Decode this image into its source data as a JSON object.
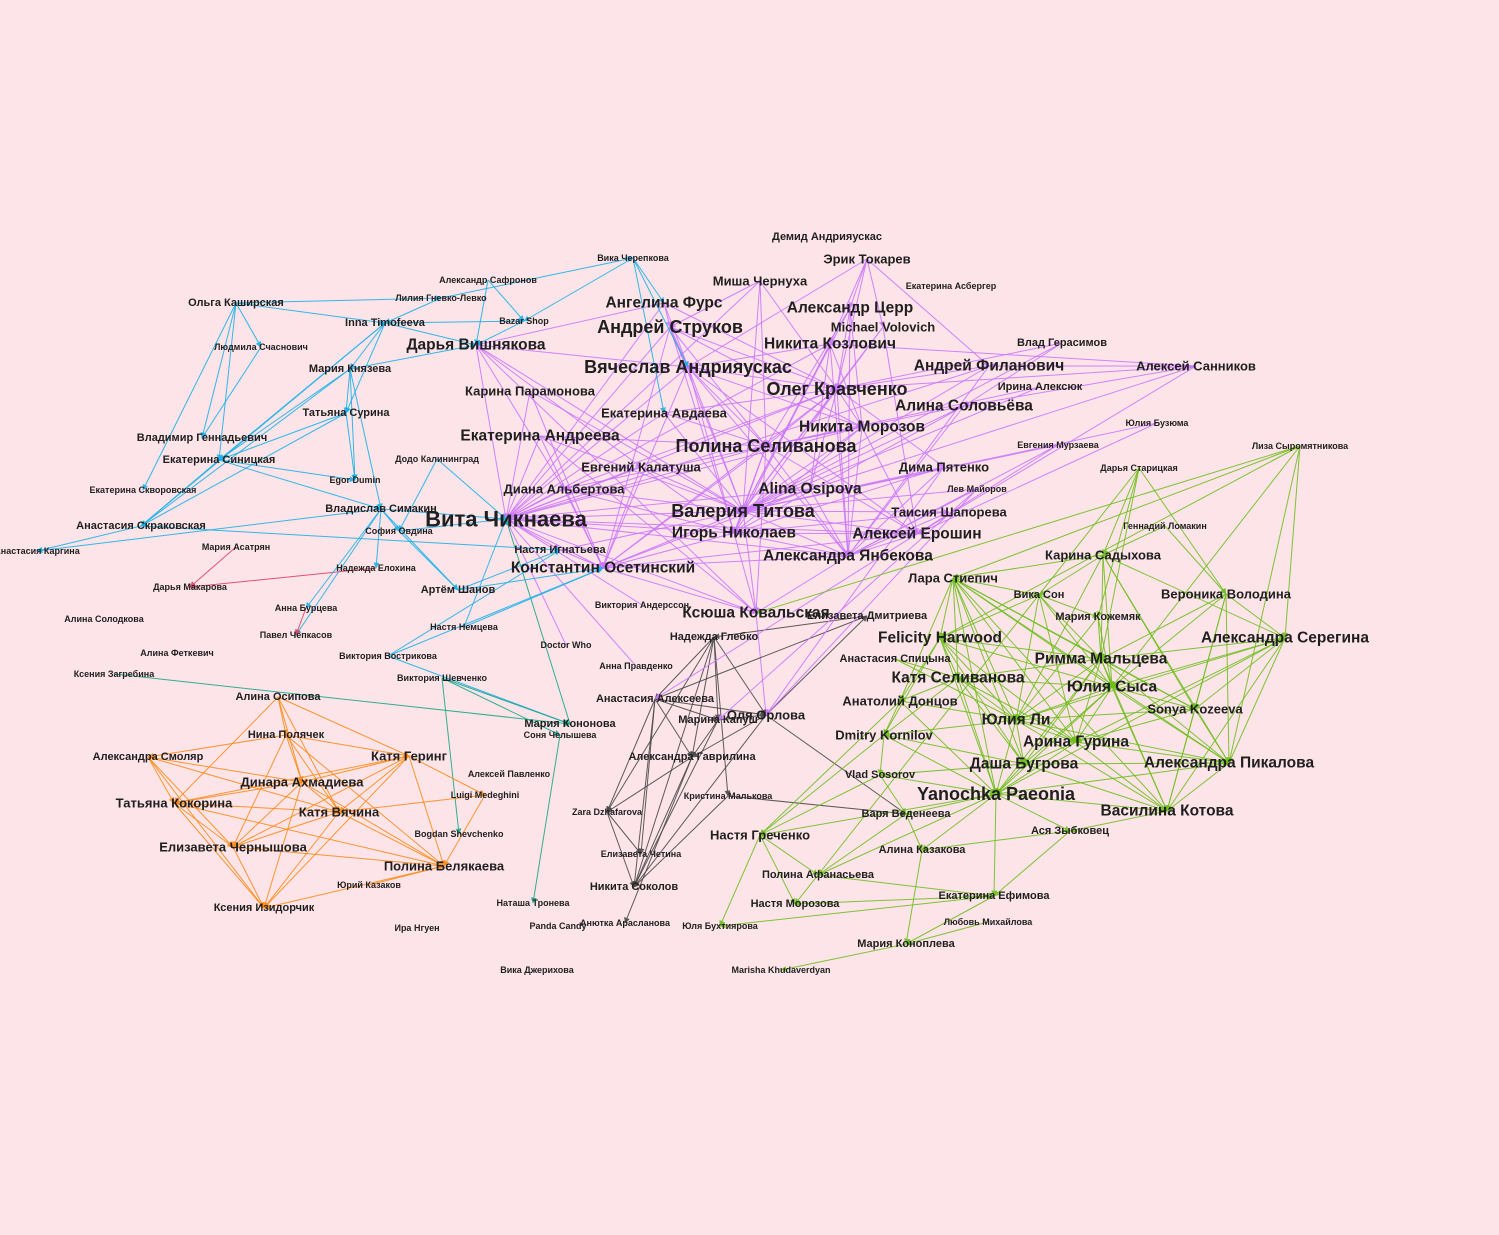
{
  "background": "#fde4e8",
  "clusters": {
    "purple": "#cc77ff",
    "blue": "#1ab2e8",
    "green": "#6fbf1f",
    "orange": "#ff8c1a",
    "gray": "#4a4a4a",
    "red": "#e0406a",
    "teal": "#1aa88a"
  },
  "nodes": [
    {
      "id": "demid",
      "label": "Демид Андрияускас",
      "c": "purple",
      "s": 1
    },
    {
      "id": "erik",
      "label": "Эрик Токарев",
      "c": "purple",
      "s": 2
    },
    {
      "id": "misha",
      "label": "Миша Чернуха",
      "c": "purple",
      "s": 2
    },
    {
      "id": "asberger",
      "label": "Екатерина Асбергер",
      "c": "purple",
      "s": 0
    },
    {
      "id": "angelina",
      "label": "Ангелина Фурс",
      "c": "purple",
      "s": 3
    },
    {
      "id": "cerr",
      "label": "Александр Церр",
      "c": "purple",
      "s": 3
    },
    {
      "id": "strukov",
      "label": "Андрей Струков",
      "c": "purple",
      "s": 4
    },
    {
      "id": "volovich",
      "label": "Michael Volovich",
      "c": "purple",
      "s": 2
    },
    {
      "id": "kozlovich",
      "label": "Никита Козлович",
      "c": "purple",
      "s": 3
    },
    {
      "id": "gerasimov",
      "label": "Влад Герасимов",
      "c": "purple",
      "s": 1
    },
    {
      "id": "vishnyakova",
      "label": "Дарья Вишнякова",
      "c": "purple",
      "s": 3
    },
    {
      "id": "andriyauskas",
      "label": "Вячеслав Андрияускас",
      "c": "purple",
      "s": 4
    },
    {
      "id": "filanovich",
      "label": "Андрей Филанович",
      "c": "purple",
      "s": 3
    },
    {
      "id": "sannikov",
      "label": "Алексей Санников",
      "c": "purple",
      "s": 2
    },
    {
      "id": "kravchenko",
      "label": "Олег Кравченко",
      "c": "purple",
      "s": 4
    },
    {
      "id": "alekseyuk",
      "label": "Ирина Алексюк",
      "c": "purple",
      "s": 1
    },
    {
      "id": "paramonova",
      "label": "Карина Парамонова",
      "c": "purple",
      "s": 2
    },
    {
      "id": "solovyova",
      "label": "Алина Соловьёва",
      "c": "purple",
      "s": 3
    },
    {
      "id": "avdaeva",
      "label": "Екатерина Авдаева",
      "c": "purple",
      "s": 2
    },
    {
      "id": "buzyuma",
      "label": "Юлия Бузюма",
      "c": "purple",
      "s": 0
    },
    {
      "id": "morozov",
      "label": "Никита Морозов",
      "c": "purple",
      "s": 3
    },
    {
      "id": "andreeva",
      "label": "Екатерина Андреева",
      "c": "purple",
      "s": 3
    },
    {
      "id": "selivanova",
      "label": "Полина Селиванова",
      "c": "purple",
      "s": 4
    },
    {
      "id": "murzaeva",
      "label": "Евгения Мурзаева",
      "c": "purple",
      "s": 0
    },
    {
      "id": "kalatusha",
      "label": "Евгений Калатуша",
      "c": "purple",
      "s": 2
    },
    {
      "id": "pyatenko",
      "label": "Дима Пятенко",
      "c": "purple",
      "s": 2
    },
    {
      "id": "albertova",
      "label": "Диана Альбертова",
      "c": "purple",
      "s": 2
    },
    {
      "id": "osipova_a",
      "label": "Alina Osipova",
      "c": "purple",
      "s": 3
    },
    {
      "id": "maiorov",
      "label": "Лев Майоров",
      "c": "purple",
      "s": 0
    },
    {
      "id": "chiknaeva",
      "label": "Вита Чикнаева",
      "c": "purple",
      "s": 5
    },
    {
      "id": "titova",
      "label": "Валерия Титова",
      "c": "purple",
      "s": 4
    },
    {
      "id": "shaporeva",
      "label": "Таисия Шапорева",
      "c": "purple",
      "s": 2
    },
    {
      "id": "nikolaev",
      "label": "Игорь Николаев",
      "c": "purple",
      "s": 3
    },
    {
      "id": "eroshin",
      "label": "Алексей Ерошин",
      "c": "purple",
      "s": 3
    },
    {
      "id": "ignatyeva",
      "label": "Настя Игнатьева",
      "c": "purple",
      "s": 1
    },
    {
      "id": "yanbekova",
      "label": "Александра Янбекова",
      "c": "purple",
      "s": 3
    },
    {
      "id": "osetinsky",
      "label": "Константин Осетинский",
      "c": "purple",
      "s": 3
    },
    {
      "id": "kovalskaya",
      "label": "Ксюша Ковальская",
      "c": "purple",
      "s": 3
    },
    {
      "id": "andersson",
      "label": "Виктория Андерсcон",
      "c": "purple",
      "s": 0
    },
    {
      "id": "doctorwho",
      "label": "Doctor Who",
      "c": "purple",
      "s": 0
    },
    {
      "id": "pravdenko",
      "label": "Анна Правденко",
      "c": "purple",
      "s": 0
    },
    {
      "id": "cherepkova",
      "label": "Вика Черепкова",
      "c": "blue",
      "s": 0
    },
    {
      "id": "safronov",
      "label": "Александр Сафронов",
      "c": "blue",
      "s": 0
    },
    {
      "id": "kashirskaya",
      "label": "Ольга Каширская",
      "c": "blue",
      "s": 1
    },
    {
      "id": "gnevko",
      "label": "Лилия Гневко-Левко",
      "c": "blue",
      "s": 0
    },
    {
      "id": "timofeeva",
      "label": "Inna Timofeeva",
      "c": "blue",
      "s": 1
    },
    {
      "id": "bazar",
      "label": "Bazar Shop",
      "c": "blue",
      "s": 0
    },
    {
      "id": "schasnovich",
      "label": "Людмила Счаснович",
      "c": "blue",
      "s": 0
    },
    {
      "id": "knyazeva",
      "label": "Мария Князева",
      "c": "blue",
      "s": 1
    },
    {
      "id": "surina",
      "label": "Татьяна Сурина",
      "c": "blue",
      "s": 1
    },
    {
      "id": "gennadyevich",
      "label": "Владимир Геннадьевич",
      "c": "blue",
      "s": 1
    },
    {
      "id": "kaliningrad",
      "label": "Додо Калининград",
      "c": "blue",
      "s": 0
    },
    {
      "id": "sinitskaya",
      "label": "Екатерина Синицкая",
      "c": "blue",
      "s": 1
    },
    {
      "id": "dumin",
      "label": "Egor Dumin",
      "c": "blue",
      "s": 0
    },
    {
      "id": "skvorovskaya",
      "label": "Екатерина Скворовская",
      "c": "blue",
      "s": 0
    },
    {
      "id": "simakin",
      "label": "Владислав Симакин",
      "c": "blue",
      "s": 1
    },
    {
      "id": "skrakovskaya",
      "label": "Анастасия Скраковская",
      "c": "blue",
      "s": 1
    },
    {
      "id": "ovdina",
      "label": "София Овдина",
      "c": "blue",
      "s": 0
    },
    {
      "id": "shanov",
      "label": "Артём Шанов",
      "c": "blue",
      "s": 1
    },
    {
      "id": "nemtseva",
      "label": "Настя Немцева",
      "c": "blue",
      "s": 0
    },
    {
      "id": "vostrikova",
      "label": "Виктория Вострикова",
      "c": "blue",
      "s": 0
    },
    {
      "id": "kargina",
      "label": "Анастасия Каргина",
      "c": "red",
      "s": 0
    },
    {
      "id": "asatryan",
      "label": "Мария Асатрян",
      "c": "red",
      "s": 0
    },
    {
      "id": "elokhina",
      "label": "Надежда Елохина",
      "c": "red",
      "s": 0
    },
    {
      "id": "makarova",
      "label": "Дарья Макарова",
      "c": "red",
      "s": 0
    },
    {
      "id": "burtseva",
      "label": "Анна Бурцева",
      "c": "red",
      "s": 0
    },
    {
      "id": "chepkasov",
      "label": "Павел Чепкасов",
      "c": "red",
      "s": 0
    },
    {
      "id": "solodkova",
      "label": "Алина Солодкова",
      "c": "gray",
      "s": 0
    },
    {
      "id": "fetkevich",
      "label": "Алина Феткевич",
      "c": "gray",
      "s": 0
    },
    {
      "id": "zagrebina",
      "label": "Ксения Загребина",
      "c": "teal",
      "s": 0
    },
    {
      "id": "shevchenko_v",
      "label": "Виктория Шевченко",
      "c": "teal",
      "s": 0
    },
    {
      "id": "kononova",
      "label": "Мария Кононова",
      "c": "teal",
      "s": 1
    },
    {
      "id": "chelysheva",
      "label": "Соня Челышева",
      "c": "teal",
      "s": 0
    },
    {
      "id": "pavlenko",
      "label": "Алексей Павленко",
      "c": "teal",
      "s": 0
    },
    {
      "id": "shevchenko_b",
      "label": "Bogdan Shevchenko",
      "c": "teal",
      "s": 0
    },
    {
      "id": "tronova",
      "label": "Наташа Тронева",
      "c": "teal",
      "s": 0
    },
    {
      "id": "osipova",
      "label": "Алина Осипова",
      "c": "orange",
      "s": 1
    },
    {
      "id": "polyachek",
      "label": "Нина Полячек",
      "c": "orange",
      "s": 1
    },
    {
      "id": "smolyar",
      "label": "Александра Смоляр",
      "c": "orange",
      "s": 1
    },
    {
      "id": "gering",
      "label": "Катя Геринг",
      "c": "orange",
      "s": 2
    },
    {
      "id": "akhmadieva",
      "label": "Динара Ахмадиева",
      "c": "orange",
      "s": 2
    },
    {
      "id": "medeghini",
      "label": "Luigi Medeghini",
      "c": "orange",
      "s": 0
    },
    {
      "id": "kokorina",
      "label": "Татьяна Кокорина",
      "c": "orange",
      "s": 2
    },
    {
      "id": "vyachina",
      "label": "Катя Вячина",
      "c": "orange",
      "s": 2
    },
    {
      "id": "chernyshova",
      "label": "Елизавета Чернышова",
      "c": "orange",
      "s": 2
    },
    {
      "id": "belyakaeva",
      "label": "Полина Белякаева",
      "c": "orange",
      "s": 2
    },
    {
      "id": "kazakov",
      "label": "Юрий Казаков",
      "c": "orange",
      "s": 0
    },
    {
      "id": "izidorchik",
      "label": "Ксения Изидорчик",
      "c": "orange",
      "s": 1
    },
    {
      "id": "nguyen",
      "label": "Ира Нгуен",
      "c": "gray",
      "s": 0
    },
    {
      "id": "dzherikhova",
      "label": "Вика Джерихова",
      "c": "gray",
      "s": 0
    },
    {
      "id": "glebko",
      "label": "Надежда Глебко",
      "c": "gray",
      "s": 1
    },
    {
      "id": "alekseeva",
      "label": "Анастасия Алексеева",
      "c": "gray",
      "s": 1
    },
    {
      "id": "kapush",
      "label": "Марина Капуш",
      "c": "gray",
      "s": 1
    },
    {
      "id": "orlova",
      "label": "Оля Орлова",
      "c": "gray",
      "s": 2
    },
    {
      "id": "gavrilina",
      "label": "Александра Гаврилина",
      "c": "gray",
      "s": 1
    },
    {
      "id": "maltkova",
      "label": "Кристина Малькова",
      "c": "gray",
      "s": 0
    },
    {
      "id": "dzhafarova",
      "label": "Zara Dzhafarova",
      "c": "gray",
      "s": 0
    },
    {
      "id": "chetina",
      "label": "Елизавета Четина",
      "c": "gray",
      "s": 0
    },
    {
      "id": "sokolov",
      "label": "Никита Соколов",
      "c": "gray",
      "s": 1
    },
    {
      "id": "candy",
      "label": "Panda Candy",
      "c": "gray",
      "s": 0
    },
    {
      "id": "araslanova",
      "label": "Анютка Арасланова",
      "c": "gray",
      "s": 0
    },
    {
      "id": "dmitrieva",
      "label": "Елизавета Дмитриева",
      "c": "gray",
      "s": 1
    },
    {
      "id": "staritskaya",
      "label": "Дарья Старицкая",
      "c": "green",
      "s": 0
    },
    {
      "id": "syromyatnikova",
      "label": "Лиза Сыромятникова",
      "c": "green",
      "s": 0
    },
    {
      "id": "lomakin",
      "label": "Геннадий Ломакин",
      "c": "green",
      "s": 0
    },
    {
      "id": "sadykhova",
      "label": "Карина Садыхова",
      "c": "green",
      "s": 2
    },
    {
      "id": "stiepich",
      "label": "Лара Стиепич",
      "c": "green",
      "s": 2
    },
    {
      "id": "son",
      "label": "Вика Сон",
      "c": "green",
      "s": 1
    },
    {
      "id": "volodina",
      "label": "Вероника Володина",
      "c": "green",
      "s": 2
    },
    {
      "id": "kozhemyak",
      "label": "Мария Кожемяк",
      "c": "green",
      "s": 1
    },
    {
      "id": "harwood",
      "label": "Felicity Harwood",
      "c": "green",
      "s": 3
    },
    {
      "id": "seregina",
      "label": "Александра Серегина",
      "c": "green",
      "s": 3
    },
    {
      "id": "spitsyna",
      "label": "Анастасия Спицына",
      "c": "green",
      "s": 1
    },
    {
      "id": "maltseva",
      "label": "Римма Мальцева",
      "c": "green",
      "s": 3
    },
    {
      "id": "k_selivanova",
      "label": "Катя Селиванова",
      "c": "green",
      "s": 3
    },
    {
      "id": "sysa",
      "label": "Юлия Сыса",
      "c": "green",
      "s": 3
    },
    {
      "id": "dontsov",
      "label": "Анатолий Донцов",
      "c": "green",
      "s": 2
    },
    {
      "id": "kozeeva",
      "label": "Sonya Kozeeva",
      "c": "green",
      "s": 2
    },
    {
      "id": "li",
      "label": "Юлия Ли",
      "c": "green",
      "s": 3
    },
    {
      "id": "kornilov",
      "label": "Dmitry Kornilov",
      "c": "green",
      "s": 2
    },
    {
      "id": "gurina",
      "label": "Арина Гурина",
      "c": "green",
      "s": 3
    },
    {
      "id": "bugrova",
      "label": "Даша Бугрова",
      "c": "green",
      "s": 3
    },
    {
      "id": "pikalova",
      "label": "Александра Пикалова",
      "c": "green",
      "s": 3
    },
    {
      "id": "sosorov",
      "label": "Vlad Sosorov",
      "c": "green",
      "s": 1
    },
    {
      "id": "paeonia",
      "label": "Yanochka Paeonia",
      "c": "green",
      "s": 4
    },
    {
      "id": "kotova",
      "label": "Василина Котова",
      "c": "green",
      "s": 3
    },
    {
      "id": "grechenko",
      "label": "Настя Греченко",
      "c": "green",
      "s": 2
    },
    {
      "id": "vedeneeva",
      "label": "Варя Веденеева",
      "c": "green",
      "s": 1
    },
    {
      "id": "zybkovets",
      "label": "Ася Зыбковец",
      "c": "green",
      "s": 1
    },
    {
      "id": "kazakova",
      "label": "Алина Казакова",
      "c": "green",
      "s": 1
    },
    {
      "id": "afanasyeva",
      "label": "Полина Афанасьева",
      "c": "green",
      "s": 1
    },
    {
      "id": "efimova",
      "label": "Екатерина Ефимова",
      "c": "green",
      "s": 1
    },
    {
      "id": "n_morozova",
      "label": "Настя Морозова",
      "c": "green",
      "s": 1
    },
    {
      "id": "mikhaylova",
      "label": "Любовь Михайлова",
      "c": "green",
      "s": 0
    },
    {
      "id": "bukhtiyarova",
      "label": "Юля Бухтиярова",
      "c": "green",
      "s": 0
    },
    {
      "id": "konopleva",
      "label": "Мария Коноплева",
      "c": "green",
      "s": 1
    },
    {
      "id": "khudaverdyan",
      "label": "Marisha Khudaverdyan",
      "c": "green",
      "s": 0
    }
  ]
}
